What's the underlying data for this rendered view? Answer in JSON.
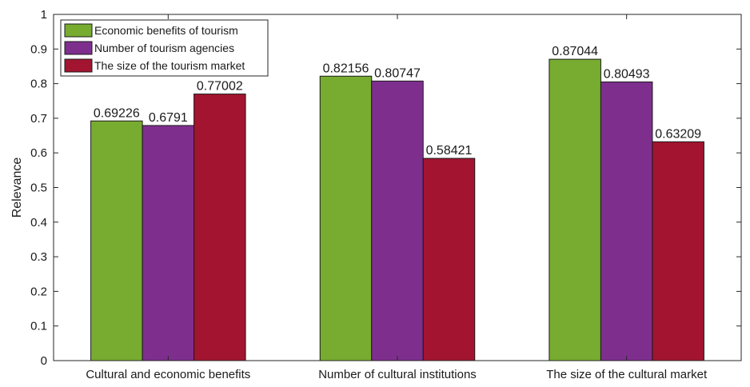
{
  "chart_data": {
    "type": "bar",
    "title": "",
    "xlabel": "",
    "ylabel": "Relevance",
    "ylim": [
      0,
      1
    ],
    "yticks": [
      "0",
      "0.1",
      "0.2",
      "0.3",
      "0.4",
      "0.5",
      "0.6",
      "0.7",
      "0.8",
      "0.9",
      "1"
    ],
    "categories": [
      "Cultural and economic benefits",
      "Number of cultural institutions",
      "The size of the cultural market"
    ],
    "series": [
      {
        "name": "Economic benefits of tourism",
        "color": "#77AC30",
        "values": [
          0.69226,
          0.82156,
          0.87044
        ],
        "labels": [
          "0.69226",
          "0.82156",
          "0.87044"
        ]
      },
      {
        "name": "Number of tourism agencies",
        "color": "#7E2F8E",
        "values": [
          0.6791,
          0.80747,
          0.80493
        ],
        "labels": [
          "0.6791",
          "0.80747",
          "0.80493"
        ]
      },
      {
        "name": "The size of the tourism market",
        "color": "#A2142F",
        "values": [
          0.77002,
          0.58421,
          0.63209
        ],
        "labels": [
          "0.77002",
          "0.58421",
          "0.63209"
        ]
      }
    ],
    "grid": false,
    "legend_position": "top-left"
  }
}
